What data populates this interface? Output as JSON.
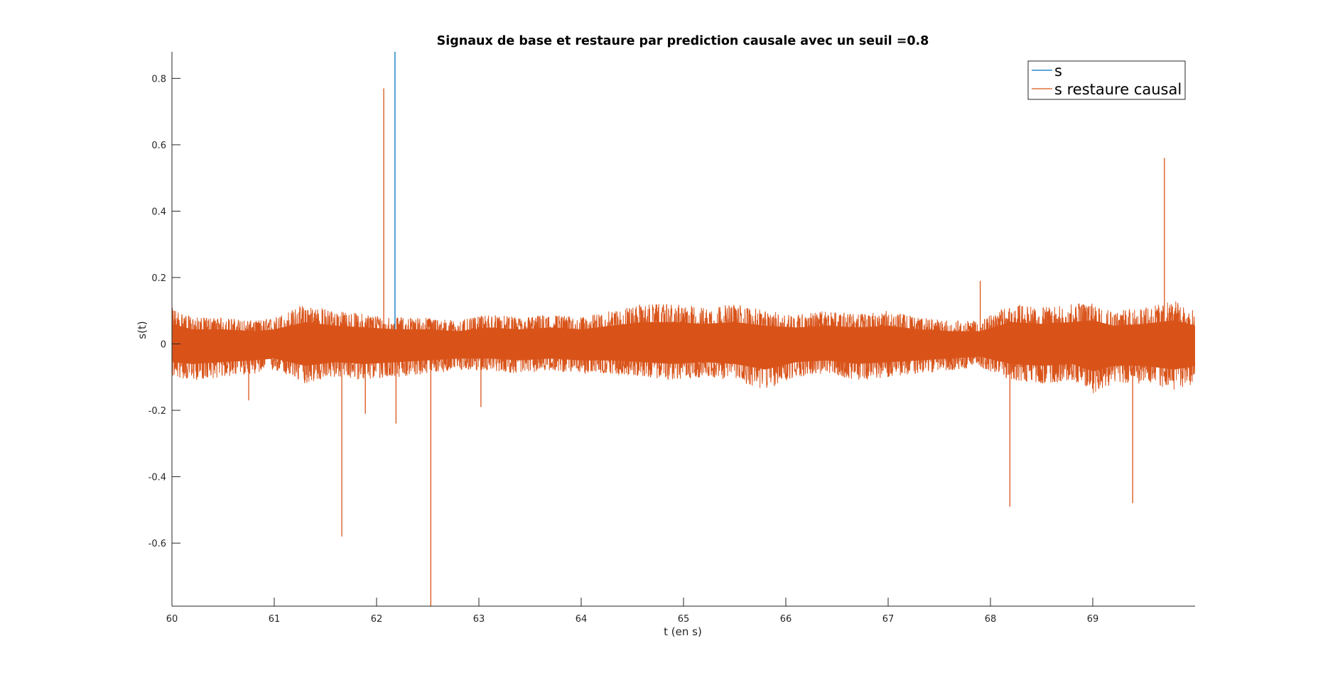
{
  "chart_data": {
    "type": "line",
    "title": "Signaux de base et restaure par prediction causale avec un seuil =0.8",
    "xlabel": "t (en s)",
    "ylabel": "s(t)",
    "xlim": [
      60,
      70
    ],
    "ylim": [
      -0.79,
      0.88
    ],
    "xticks": [
      60,
      61,
      62,
      63,
      64,
      65,
      66,
      67,
      68,
      69
    ],
    "xtick_labels": [
      "60",
      "61",
      "62",
      "63",
      "64",
      "65",
      "66",
      "67",
      "68",
      "69"
    ],
    "yticks": [
      -0.6,
      -0.4,
      -0.2,
      0,
      0.2,
      0.4,
      0.6,
      0.8
    ],
    "ytick_labels": [
      "-0.6",
      "-0.4",
      "-0.2",
      "0",
      "0.2",
      "0.4",
      "0.6",
      "0.8"
    ],
    "grid": false,
    "legend_position": "top-right",
    "series": [
      {
        "name": "s",
        "color": "#0072BD",
        "spikes": [
          {
            "t": 62.18,
            "value": 0.88
          }
        ]
      },
      {
        "name": "s restaure causal",
        "color": "#D95319",
        "envelope": {
          "t": [
            60.0,
            60.2,
            60.5,
            60.8,
            61.0,
            61.3,
            61.6,
            61.9,
            62.2,
            62.5,
            62.8,
            63.1,
            63.4,
            63.7,
            64.0,
            64.3,
            64.6,
            64.9,
            65.2,
            65.5,
            65.8,
            66.1,
            66.4,
            66.7,
            67.0,
            67.3,
            67.6,
            67.9,
            68.2,
            68.5,
            68.8,
            69.0,
            69.2,
            69.5,
            69.8,
            70.0
          ],
          "upper": [
            0.11,
            0.08,
            0.08,
            0.07,
            0.08,
            0.12,
            0.1,
            0.09,
            0.08,
            0.08,
            0.07,
            0.09,
            0.08,
            0.09,
            0.08,
            0.1,
            0.12,
            0.12,
            0.11,
            0.12,
            0.1,
            0.09,
            0.1,
            0.09,
            0.1,
            0.08,
            0.07,
            0.07,
            0.12,
            0.11,
            0.12,
            0.13,
            0.1,
            0.11,
            0.13,
            0.1
          ],
          "lower": [
            -0.1,
            -0.11,
            -0.1,
            -0.09,
            -0.08,
            -0.12,
            -0.1,
            -0.11,
            -0.1,
            -0.09,
            -0.08,
            -0.08,
            -0.09,
            -0.08,
            -0.09,
            -0.09,
            -0.1,
            -0.11,
            -0.1,
            -0.11,
            -0.14,
            -0.1,
            -0.09,
            -0.11,
            -0.1,
            -0.09,
            -0.08,
            -0.07,
            -0.11,
            -0.12,
            -0.11,
            -0.15,
            -0.12,
            -0.12,
            -0.14,
            -0.12
          ]
        },
        "spikes": [
          {
            "t": 60.75,
            "value": -0.17
          },
          {
            "t": 61.66,
            "value": -0.58
          },
          {
            "t": 61.89,
            "value": -0.21
          },
          {
            "t": 62.07,
            "value": 0.77
          },
          {
            "t": 62.19,
            "value": -0.24
          },
          {
            "t": 62.53,
            "value": -0.79
          },
          {
            "t": 63.02,
            "value": -0.19
          },
          {
            "t": 67.9,
            "value": 0.19
          },
          {
            "t": 68.19,
            "value": -0.49
          },
          {
            "t": 69.39,
            "value": -0.48
          },
          {
            "t": 69.7,
            "value": 0.56
          }
        ]
      }
    ]
  }
}
